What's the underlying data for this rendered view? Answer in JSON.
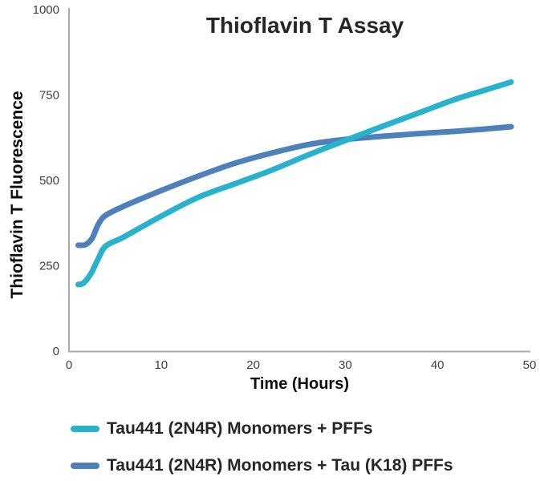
{
  "chart_data": {
    "type": "line",
    "title": "Thioflavin T Assay",
    "xlabel": "Time (Hours)",
    "ylabel": "Thioflavin T Fluorescence",
    "xlim": [
      0,
      50
    ],
    "ylim": [
      0,
      1000
    ],
    "x_ticks": [
      0,
      10,
      20,
      30,
      40,
      50
    ],
    "y_ticks": [
      0,
      250,
      500,
      750,
      1000
    ],
    "grid": false,
    "legend_position": "bottom-left",
    "series": [
      {
        "name": "Tau441 (2N4R) Monomers + PFFs",
        "color": "#29B2CE",
        "x": [
          1,
          1.6,
          2.4,
          3.2,
          4,
          6,
          10,
          14,
          18,
          22,
          26,
          30,
          34,
          38,
          42,
          45,
          48
        ],
        "y": [
          195,
          200,
          228,
          272,
          308,
          335,
          395,
          450,
          490,
          530,
          575,
          617,
          658,
          698,
          738,
          763,
          788
        ]
      },
      {
        "name": "Tau441 (2N4R) Monomers + Tau (K18) PFFs",
        "color": "#4E80BA",
        "x": [
          1,
          1.8,
          2.5,
          3.2,
          4,
          6,
          10,
          14,
          18,
          22,
          26,
          30,
          34,
          38,
          42,
          45,
          48
        ],
        "y": [
          310,
          312,
          330,
          372,
          398,
          425,
          470,
          512,
          550,
          580,
          605,
          620,
          629,
          637,
          644,
          650,
          657
        ]
      }
    ]
  },
  "style": {
    "axis_color": "#ABABAB",
    "tick_text_color": "#3F3F3F",
    "title_color": "#262626",
    "line_width": 7
  }
}
